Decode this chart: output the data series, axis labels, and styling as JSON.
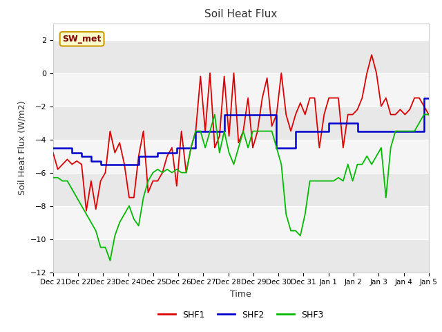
{
  "title": "Soil Heat Flux",
  "xlabel": "Time",
  "ylabel": "Soil Heat Flux (W/m2)",
  "ylim": [
    -12,
    3
  ],
  "yticks": [
    -12,
    -10,
    -8,
    -6,
    -4,
    -2,
    0,
    2
  ],
  "annotation_text": "SW_met",
  "annotation_bg": "#ffffcc",
  "annotation_edge": "#cc9900",
  "x_labels": [
    "Dec 21",
    "Dec 22",
    "Dec 23",
    "Dec 24",
    "Dec 25",
    "Dec 26",
    "Dec 27",
    "Dec 28",
    "Dec 29",
    "Dec 30",
    "Dec 31",
    "Jan 1",
    "Jan 2",
    "Jan 3",
    "Jan 4",
    "Jan 5"
  ],
  "shf1": [
    -4.8,
    -5.8,
    -5.5,
    -5.2,
    -5.5,
    -5.3,
    -5.5,
    -8.3,
    -6.5,
    -8.2,
    -6.5,
    -6.0,
    -3.5,
    -4.8,
    -4.2,
    -5.5,
    -7.5,
    -7.5,
    -5.0,
    -3.5,
    -7.2,
    -6.5,
    -6.5,
    -6.0,
    -5.0,
    -4.5,
    -6.8,
    -3.5,
    -6.0,
    -4.5,
    -3.5,
    -0.2,
    -3.5,
    0.0,
    -4.5,
    -3.8,
    -0.2,
    -3.8,
    0.0,
    -4.2,
    -3.5,
    -1.5,
    -4.5,
    -3.5,
    -1.5,
    -0.3,
    -3.2,
    -2.5,
    0.0,
    -2.5,
    -3.5,
    -2.5,
    -1.8,
    -2.5,
    -1.5,
    -1.5,
    -4.5,
    -2.5,
    -1.5,
    -1.5,
    -1.5,
    -4.5,
    -2.5,
    -2.5,
    -2.2,
    -1.5,
    0.0,
    1.1,
    0.0,
    -2.0,
    -1.5,
    -2.5,
    -2.5,
    -2.2,
    -2.5,
    -2.2,
    -1.5,
    -1.5,
    -2.0,
    -2.5
  ],
  "shf2": [
    -4.5,
    -4.5,
    -4.5,
    -4.5,
    -4.8,
    -4.8,
    -5.0,
    -5.0,
    -5.3,
    -5.3,
    -5.5,
    -5.5,
    -5.5,
    -5.5,
    -5.5,
    -5.5,
    -5.5,
    -5.5,
    -5.0,
    -5.0,
    -5.0,
    -5.0,
    -4.8,
    -4.8,
    -4.8,
    -4.8,
    -4.5,
    -4.5,
    -4.5,
    -4.5,
    -3.5,
    -3.5,
    -3.5,
    -3.5,
    -3.5,
    -3.5,
    -2.5,
    -2.5,
    -2.5,
    -2.5,
    -2.5,
    -2.5,
    -2.5,
    -2.5,
    -2.5,
    -2.5,
    -2.5,
    -4.5,
    -4.5,
    -4.5,
    -4.5,
    -3.5,
    -3.5,
    -3.5,
    -3.5,
    -3.5,
    -3.5,
    -3.5,
    -3.0,
    -3.0,
    -3.0,
    -3.0,
    -3.0,
    -3.0,
    -3.5,
    -3.5,
    -3.5,
    -3.5,
    -3.5,
    -3.5,
    -3.5,
    -3.5,
    -3.5,
    -3.5,
    -3.5,
    -3.5,
    -3.5,
    -3.5,
    -1.5,
    -1.5
  ],
  "shf3": [
    -6.3,
    -6.3,
    -6.5,
    -6.5,
    -7.0,
    -7.5,
    -8.0,
    -8.5,
    -9.0,
    -9.5,
    -10.5,
    -10.5,
    -11.3,
    -9.8,
    -9.0,
    -8.5,
    -8.0,
    -8.8,
    -9.2,
    -7.5,
    -6.5,
    -6.0,
    -5.8,
    -6.0,
    -5.8,
    -6.0,
    -5.8,
    -6.0,
    -6.0,
    -4.5,
    -3.5,
    -3.5,
    -4.5,
    -3.5,
    -2.5,
    -4.8,
    -3.5,
    -4.8,
    -5.5,
    -4.5,
    -3.5,
    -4.5,
    -3.5,
    -3.5,
    -3.5,
    -3.5,
    -3.5,
    -4.5,
    -5.5,
    -8.5,
    -9.5,
    -9.5,
    -9.8,
    -8.5,
    -6.5,
    -6.5,
    -6.5,
    -6.5,
    -6.5,
    -6.5,
    -6.3,
    -6.5,
    -5.5,
    -6.5,
    -5.5,
    -5.5,
    -5.0,
    -5.5,
    -5.0,
    -4.5,
    -7.5,
    -4.5,
    -3.5,
    -3.5,
    -3.5,
    -3.5,
    -3.5,
    -3.0,
    -2.5,
    -2.5
  ],
  "shf1_color": "#dd0000",
  "shf2_color": "#0000cc",
  "shf3_color": "#00bb00"
}
